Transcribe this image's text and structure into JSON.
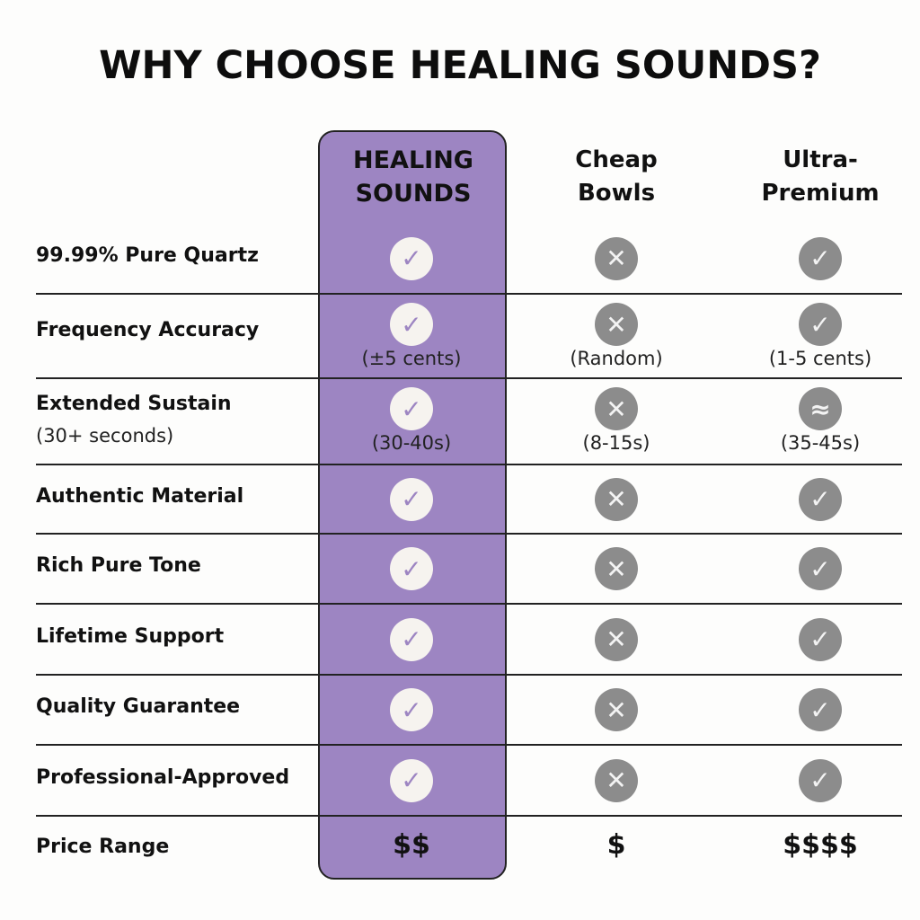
{
  "title": "WHY CHOOSE HEALING SOUNDS?",
  "colors": {
    "highlight": "#9d85c2",
    "icon_gray": "#8c8c8c"
  },
  "columns": [
    {
      "line1": "HEALING",
      "line2": "SOUNDS"
    },
    {
      "line1": "Cheap",
      "line2": "Bowls"
    },
    {
      "line1": "Ultra-",
      "line2": "Premium"
    }
  ],
  "rows": [
    {
      "label": "99.99% Pure Quartz",
      "sub": "",
      "cells": [
        {
          "icon": "check-icon",
          "note": ""
        },
        {
          "icon": "x-icon",
          "note": ""
        },
        {
          "icon": "check-icon",
          "note": ""
        }
      ]
    },
    {
      "label": "Frequency Accuracy",
      "sub": "",
      "cells": [
        {
          "icon": "check-icon",
          "note": "(±5 cents)"
        },
        {
          "icon": "x-icon",
          "note": "(Random)"
        },
        {
          "icon": "check-icon",
          "note": "(1-5 cents)"
        }
      ]
    },
    {
      "label": "Extended Sustain",
      "sub": "(30+ seconds)",
      "cells": [
        {
          "icon": "check-icon",
          "note": "(30-40s)"
        },
        {
          "icon": "x-icon",
          "note": "(8-15s)"
        },
        {
          "icon": "approx-icon",
          "note": "(35-45s)"
        }
      ]
    },
    {
      "label": "Authentic Material",
      "sub": "",
      "cells": [
        {
          "icon": "check-icon",
          "note": ""
        },
        {
          "icon": "x-icon",
          "note": ""
        },
        {
          "icon": "check-icon",
          "note": ""
        }
      ]
    },
    {
      "label": "Rich Pure Tone",
      "sub": "",
      "cells": [
        {
          "icon": "check-icon",
          "note": ""
        },
        {
          "icon": "x-icon",
          "note": ""
        },
        {
          "icon": "check-icon",
          "note": ""
        }
      ]
    },
    {
      "label": "Lifetime Support",
      "sub": "",
      "cells": [
        {
          "icon": "check-icon",
          "note": ""
        },
        {
          "icon": "x-icon",
          "note": ""
        },
        {
          "icon": "check-icon",
          "note": ""
        }
      ]
    },
    {
      "label": "Quality Guarantee",
      "sub": "",
      "cells": [
        {
          "icon": "check-icon",
          "note": ""
        },
        {
          "icon": "x-icon",
          "note": ""
        },
        {
          "icon": "check-icon",
          "note": ""
        }
      ]
    },
    {
      "label": "Professional-Approved",
      "sub": "",
      "cells": [
        {
          "icon": "check-icon",
          "note": ""
        },
        {
          "icon": "x-icon",
          "note": ""
        },
        {
          "icon": "check-icon",
          "note": ""
        }
      ]
    }
  ],
  "price_row": {
    "label": "Price Range",
    "values": [
      "$$",
      "$",
      "$$$$"
    ]
  }
}
